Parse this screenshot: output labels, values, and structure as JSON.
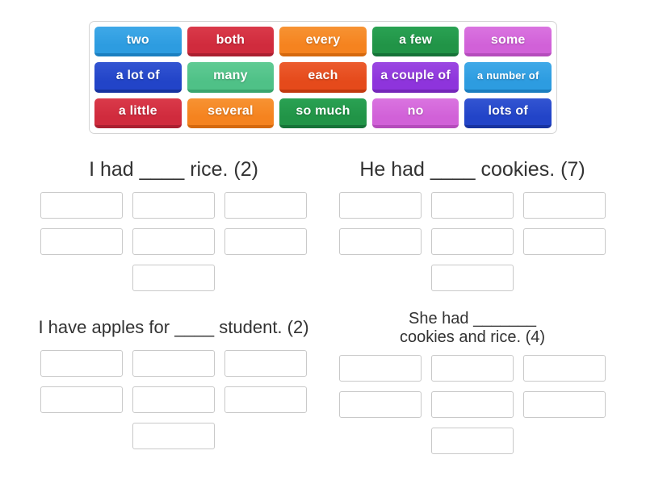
{
  "tray": {
    "tiles": [
      {
        "label": "two",
        "top": "#3fa9e8",
        "base": "#2d9ce0",
        "edge": "#1b7fc0"
      },
      {
        "label": "both",
        "top": "#da3a4a",
        "base": "#d02b3d",
        "edge": "#ab1f30"
      },
      {
        "label": "every",
        "top": "#f79333",
        "base": "#f5831f",
        "edge": "#d5690e"
      },
      {
        "label": "a few",
        "top": "#2aa253",
        "base": "#219447",
        "edge": "#167338"
      },
      {
        "label": "some",
        "top": "#da74e0",
        "base": "#d161d8",
        "edge": "#b54cbc"
      },
      {
        "label": "a lot of",
        "top": "#3355d2",
        "base": "#2244c8",
        "edge": "#1733a0"
      },
      {
        "label": "many",
        "top": "#60cb94",
        "base": "#4fc187",
        "edge": "#3aa56e"
      },
      {
        "label": "each",
        "top": "#ec5c2e",
        "base": "#e54a1b",
        "edge": "#c23a0e"
      },
      {
        "label": "a couple of",
        "top": "#9b48e2",
        "base": "#8e34dc",
        "edge": "#7526ba"
      },
      {
        "label": "a number of",
        "top": "#3fa9e8",
        "base": "#2d9ce0",
        "edge": "#1b7fc0",
        "small": true
      },
      {
        "label": "a little",
        "top": "#da3a4a",
        "base": "#d02b3d",
        "edge": "#ab1f30"
      },
      {
        "label": "several",
        "top": "#f79333",
        "base": "#f5831f",
        "edge": "#d5690e"
      },
      {
        "label": "so much",
        "top": "#2aa253",
        "base": "#219447",
        "edge": "#167338"
      },
      {
        "label": "no",
        "top": "#da74e0",
        "base": "#d161d8",
        "edge": "#b54cbc"
      },
      {
        "label": "lots of",
        "top": "#3355d2",
        "base": "#2244c8",
        "edge": "#1733a0"
      }
    ]
  },
  "groups": [
    {
      "title": "I had ____ rice. (2)",
      "slot_count": 7
    },
    {
      "title": "He had ____ cookies. (7)",
      "slot_count": 7
    },
    {
      "title": "I have apples for ____ student. (2)",
      "slot_count": 7
    },
    {
      "title": "She had _______\ncookies and rice. (4)",
      "slot_count": 7
    }
  ],
  "palette": {
    "background": "#ffffff",
    "tray_border": "#d4d4d4",
    "slot_border": "#c9c9c9",
    "title_text": "#333333",
    "tile_text": "#ffffff"
  }
}
